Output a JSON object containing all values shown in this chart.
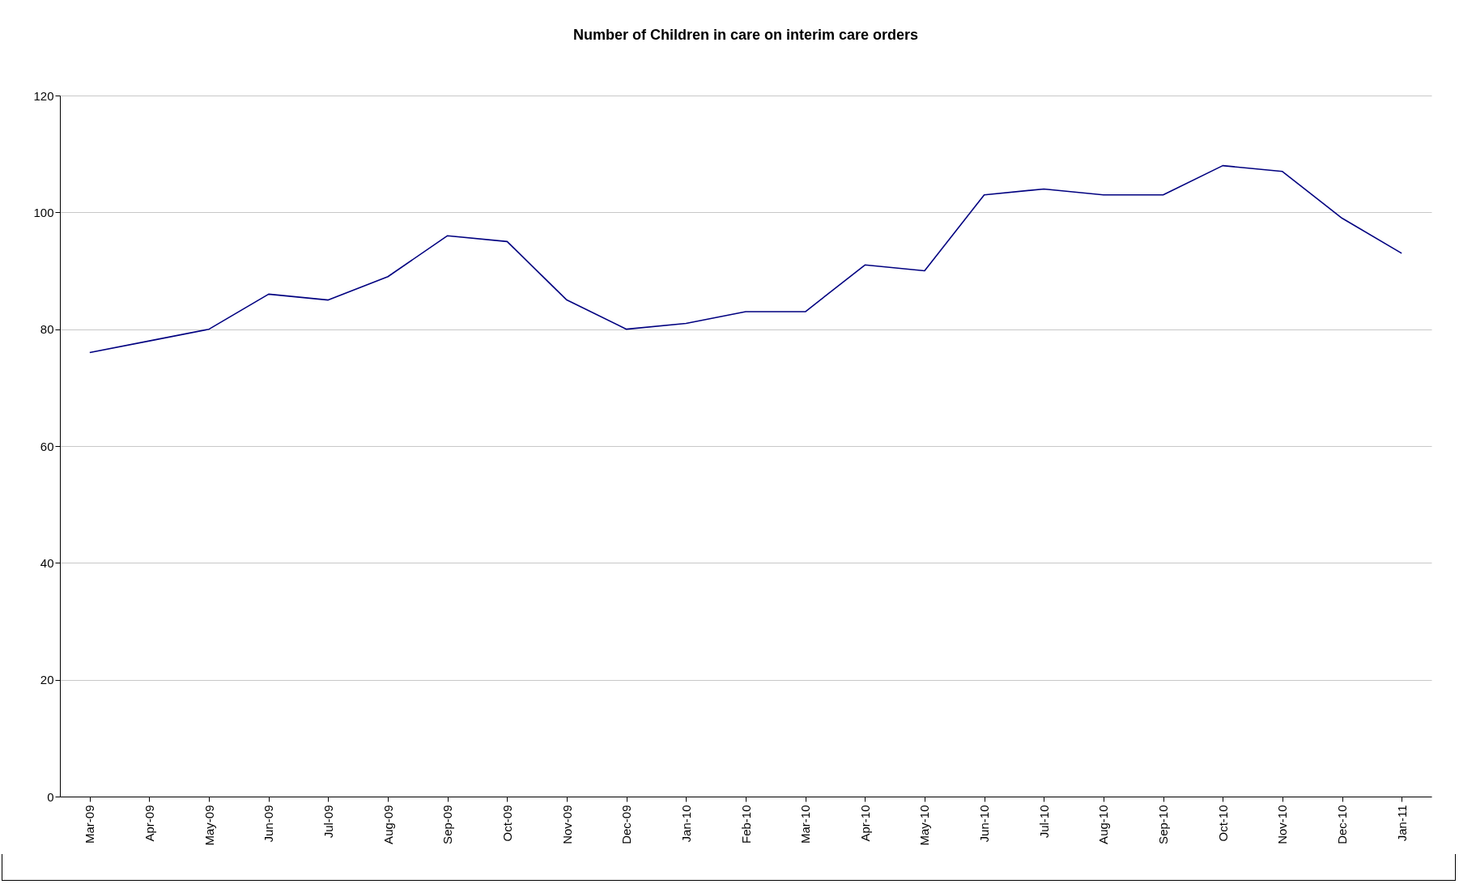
{
  "chart_data": {
    "type": "line",
    "title": "Number of Children in care on interim care orders",
    "categories": [
      "Mar-09",
      "Apr-09",
      "May-09",
      "Jun-09",
      "Jul-09",
      "Aug-09",
      "Sep-09",
      "Oct-09",
      "Nov-09",
      "Dec-09",
      "Jan-10",
      "Feb-10",
      "Mar-10",
      "Apr-10",
      "May-10",
      "Jun-10",
      "Jul-10",
      "Aug-10",
      "Sep-10",
      "Oct-10",
      "Nov-10",
      "Dec-10",
      "Jan-11"
    ],
    "series": [
      {
        "color": "#000080",
        "values": [
          76,
          78,
          80,
          86,
          85,
          89,
          96,
          95,
          85,
          80,
          81,
          83,
          83,
          91,
          90,
          103,
          104,
          103,
          103,
          108,
          107,
          99,
          93
        ]
      }
    ],
    "ylim": [
      0,
      120
    ],
    "yticks": [
      0,
      20,
      40,
      60,
      80,
      100,
      120
    ],
    "grid": "y",
    "marker": "none",
    "line_style": "solid"
  }
}
